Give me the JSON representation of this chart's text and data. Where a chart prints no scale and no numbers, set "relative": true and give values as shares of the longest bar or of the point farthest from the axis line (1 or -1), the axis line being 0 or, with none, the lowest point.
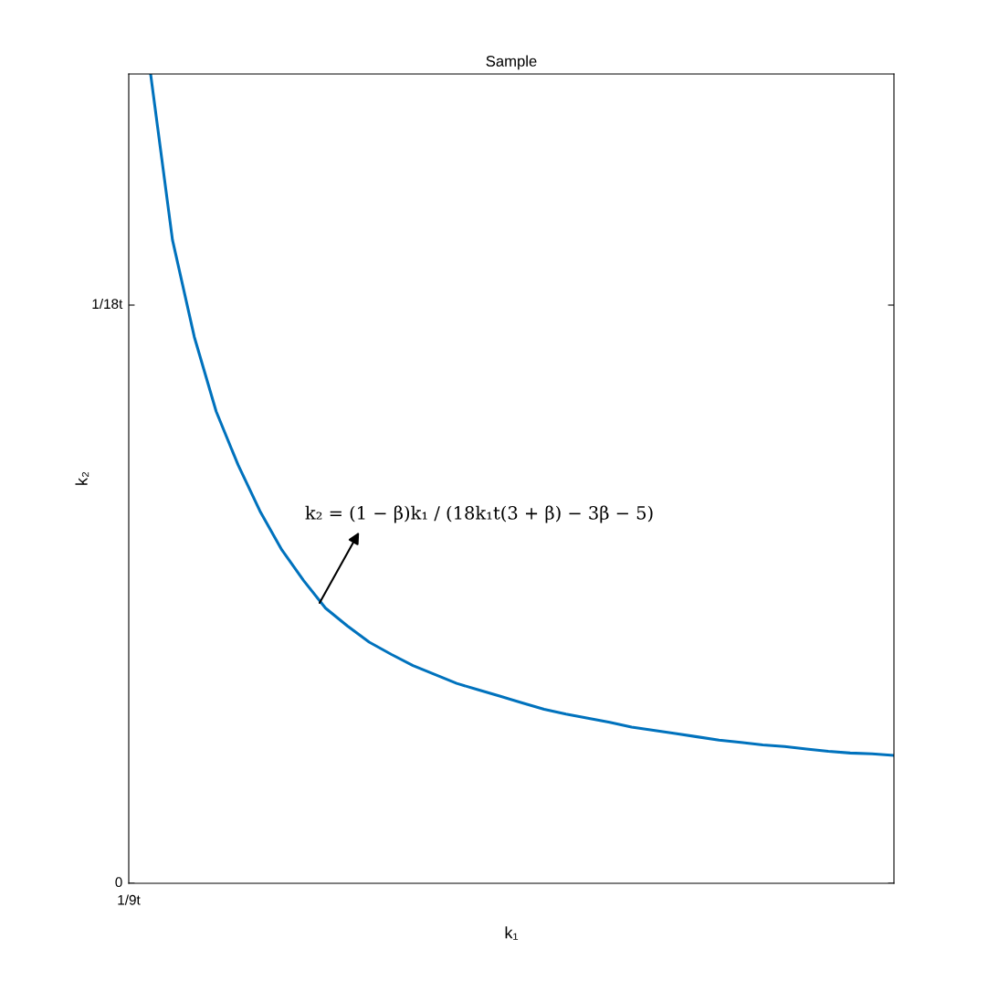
{
  "chart_data": {
    "type": "line",
    "title": "Sample",
    "xlabel": "k₁",
    "ylabel": "k₂",
    "relative": true,
    "categories": [
      null,
      null,
      null,
      null,
      null,
      null,
      null,
      null,
      null,
      null,
      null,
      null,
      null,
      null,
      null,
      null,
      null,
      null,
      null,
      null,
      null,
      null,
      null,
      null,
      null,
      null,
      null,
      null,
      null,
      null,
      null,
      null,
      null,
      null,
      null,
      null
    ],
    "series": [
      {
        "color": "#0072bd",
        "values": [
          null,
          1.0,
          0.795,
          0.675,
          0.583,
          0.517,
          0.46,
          0.412,
          0.374,
          0.34,
          0.318,
          0.298,
          0.283,
          0.269,
          0.258,
          0.247,
          0.239,
          0.231,
          0.223,
          0.215,
          0.209,
          0.204,
          0.199,
          0.193,
          0.189,
          0.185,
          0.181,
          0.177,
          0.174,
          0.171,
          0.169,
          0.166,
          0.163,
          0.161,
          0.16,
          0.158
        ]
      }
    ],
    "annotations": [
      "0",
      "1/18t",
      "1/9t",
      "k₂ = (1 − β)k₁ / (18k₁t(3 + β) − 3β − 5)"
    ],
    "grid": false,
    "legend": false,
    "marker": "none",
    "line_style": "solid"
  }
}
